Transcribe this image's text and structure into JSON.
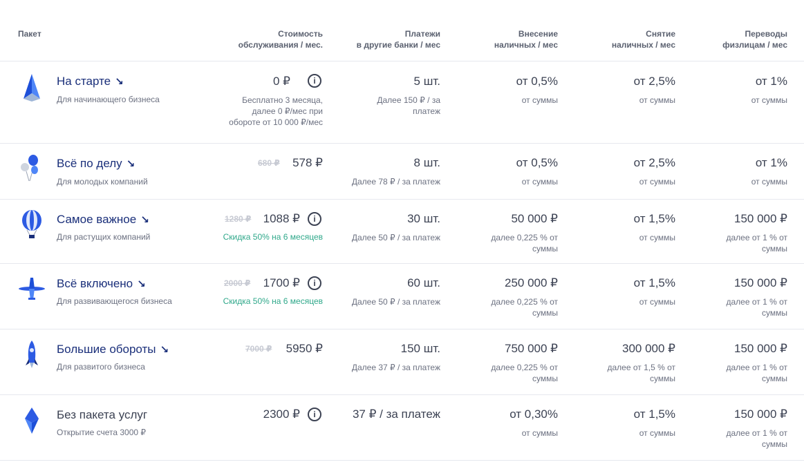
{
  "headers": {
    "package": "Пакет",
    "service_1": "Стоимость",
    "service_2": "обслуживания / мес.",
    "payments_1": "Платежи",
    "payments_2": "в другие банки / мес",
    "deposit_1": "Внесение",
    "deposit_2": "наличных / мес",
    "withdraw_1": "Снятие",
    "withdraw_2": "наличных / мес",
    "transfer_1": "Переводы",
    "transfer_2": "физлицам / мес"
  },
  "rows": [
    {
      "name": "На старте",
      "icon": "paper-plane-icon",
      "sub": "Для начинающего бизнеса",
      "price": "0 ₽",
      "price_note_1": "Бесплатно 3 месяца,",
      "price_note_2": "далее 0 ₽/мес при",
      "price_note_3": "обороте от 10 000 ₽/мес",
      "payments": "5 шт.",
      "payments_note_1": "Далее 150 ₽ / за",
      "payments_note_2": "платеж",
      "deposit": "от 0,5%",
      "deposit_note_1": "от суммы",
      "withdraw": "от 2,5%",
      "withdraw_note_1": "от суммы",
      "transfer": "от 1%",
      "transfer_note_1": "от суммы"
    },
    {
      "name": "Всё по делу",
      "icon": "balloons-icon",
      "sub": "Для молодых компаний",
      "old_price": "680 ₽",
      "price": "578 ₽",
      "payments": "8 шт.",
      "payments_note_1": "Далее 78 ₽ / за платеж",
      "deposit": "от 0,5%",
      "deposit_note_1": "от суммы",
      "withdraw": "от 2,5%",
      "withdraw_note_1": "от суммы",
      "transfer": "от 1%",
      "transfer_note_1": "от суммы"
    },
    {
      "name": "Самое важное",
      "icon": "hot-air-balloon-icon",
      "sub": "Для растущих компаний",
      "old_price": "1280 ₽",
      "price": "1088 ₽",
      "discount": "Скидка 50% на 6 месяцев",
      "payments": "30 шт.",
      "payments_note_1": "Далее 50 ₽ / за платеж",
      "deposit": "50 000 ₽",
      "deposit_note_1": "далее 0,225 % от",
      "deposit_note_2": "суммы",
      "withdraw": "от 1,5%",
      "withdraw_note_1": "от суммы",
      "transfer": "150 000 ₽",
      "transfer_note_1": "далее от 1 % от",
      "transfer_note_2": "суммы"
    },
    {
      "name": "Всё включено",
      "icon": "airplane-icon",
      "sub": "Для развивающегося бизнеса",
      "old_price": "2000 ₽",
      "price": "1700 ₽",
      "discount": "Скидка 50% на 6 месяцев",
      "payments": "60 шт.",
      "payments_note_1": "Далее 50 ₽ / за платеж",
      "deposit": "250 000 ₽",
      "deposit_note_1": "далее 0,225 % от",
      "deposit_note_2": "суммы",
      "withdraw": "от 1,5%",
      "withdraw_note_1": "от суммы",
      "transfer": "150 000 ₽",
      "transfer_note_1": "далее от 1 % от",
      "transfer_note_2": "суммы"
    },
    {
      "name": "Большие обороты",
      "icon": "rocket-icon",
      "sub": "Для развитого бизнеса",
      "old_price": "7000 ₽",
      "price": "5950 ₽",
      "payments": "150 шт.",
      "payments_note_1": "Далее 37 ₽ / за платеж",
      "deposit": "750 000 ₽",
      "deposit_note_1": "далее 0,225 % от",
      "deposit_note_2": "суммы",
      "withdraw": "300 000 ₽",
      "withdraw_note_1": "далее от 1,5 % от",
      "withdraw_note_2": "суммы",
      "transfer": "150 000 ₽",
      "transfer_note_1": "далее от 1 % от",
      "transfer_note_2": "суммы"
    },
    {
      "name": "Без пакета услуг",
      "icon": "crystal-icon",
      "sub": "Открытие счета 3000 ₽",
      "price": "2300 ₽",
      "payments": "37 ₽ / за платеж",
      "deposit": "от 0,30%",
      "deposit_note_1": "от суммы",
      "withdraw": "от 1,5%",
      "withdraw_note_1": "от суммы",
      "transfer": "150 000 ₽",
      "transfer_note_1": "далее от 1 % от",
      "transfer_note_2": "суммы"
    }
  ],
  "info_symbol": "i",
  "arrow_symbol": "↘"
}
